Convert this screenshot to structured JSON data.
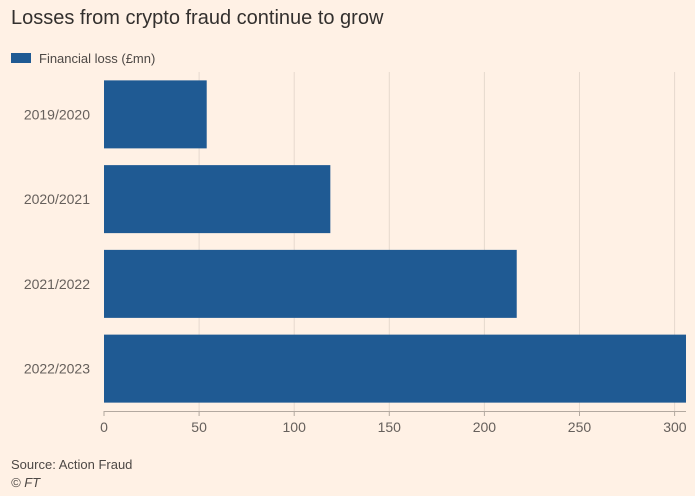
{
  "chart_data": {
    "type": "bar",
    "orientation": "horizontal",
    "title": "Losses from crypto fraud continue to grow",
    "categories": [
      "2019/2020",
      "2020/2021",
      "2021/2022",
      "2022/2023"
    ],
    "series": [
      {
        "name": "Financial loss (£mn)",
        "values": [
          54,
          119,
          217,
          306
        ]
      }
    ],
    "xlabel": "",
    "ylabel": "",
    "xlim": [
      0,
      306
    ],
    "xticks": [
      0,
      50,
      100,
      150,
      200,
      250,
      300
    ],
    "grid": true,
    "legend": "top-left",
    "bar_color": "#1f5a93"
  },
  "source": "Source: Action Fraud",
  "credit": "© FT"
}
